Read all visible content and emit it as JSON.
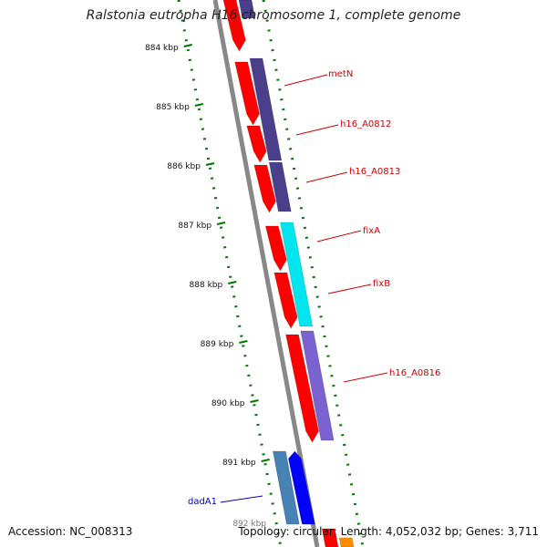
{
  "map": {
    "title": "Ralstonia eutropha H16 chromosome 1, complete genome",
    "tick_labels": [
      "884 kbp",
      "885 kbp",
      "886 kbp",
      "887 kbp",
      "888 kbp",
      "889 kbp",
      "890 kbp",
      "891 kbp"
    ],
    "partial_tick_label": "892 kbp",
    "gene_labels": [
      {
        "name": "metN",
        "color": "#cc0000"
      },
      {
        "name": "h16_A0812",
        "color": "#cc0000"
      },
      {
        "name": "h16_A0813",
        "color": "#cc0000"
      },
      {
        "name": "fixA",
        "color": "#cc0000"
      },
      {
        "name": "fixB",
        "color": "#cc0000"
      },
      {
        "name": "h16_A0816",
        "color": "#cc0000"
      },
      {
        "name": "dadA1",
        "color": "#0000bb"
      }
    ],
    "colors": {
      "cds_forward": "#ff0000",
      "cog_purple": "#4b3f8c",
      "cog_cyan": "#00e5ee",
      "cog_lavender": "#7a62d0",
      "cog_steelblue": "#4682b4",
      "cds_reverse": "#0000ff",
      "backbone": "#888888",
      "gc_skew_dots": "#007700"
    }
  },
  "footer": {
    "accession": "Accession: NC_008313",
    "summary": "Topology: circular; Length: 4,052,032 bp; Genes: 3,711"
  }
}
